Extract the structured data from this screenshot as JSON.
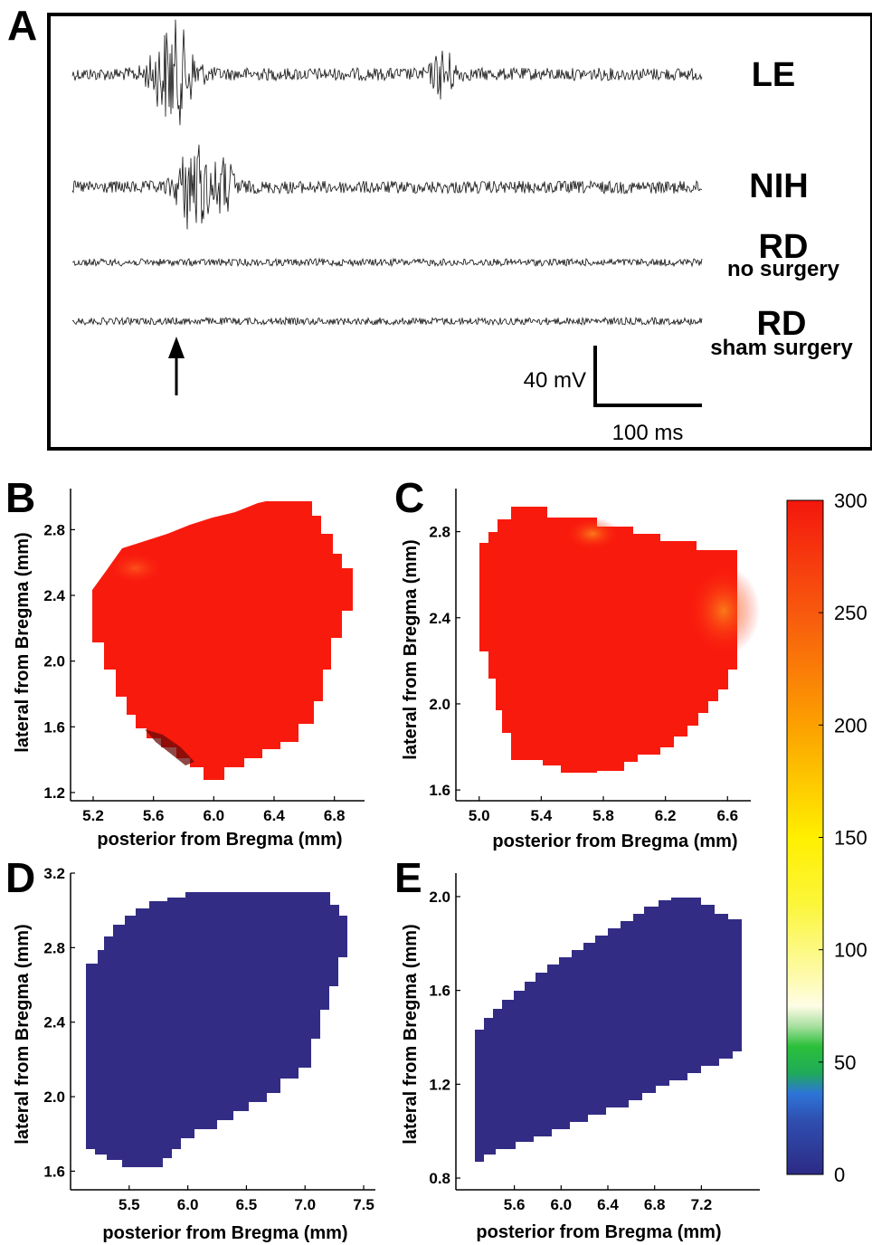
{
  "panel_a": {
    "letter": "A",
    "traces": [
      {
        "label": "LE",
        "sublabel": "",
        "burst": {
          "center_ms": 90,
          "amp": 1.0,
          "width_ms": 18
        },
        "burst2": {
          "center_ms": 330,
          "amp": 0.45,
          "width_ms": 10
        }
      },
      {
        "label": "NIH",
        "sublabel": "",
        "burst": {
          "center_ms": 108,
          "amp": 0.9,
          "width_ms": 14
        },
        "burst2": {
          "center_ms": 135,
          "amp": 0.5,
          "width_ms": 10
        }
      },
      {
        "label": "RD",
        "sublabel": "no surgery",
        "burst": null,
        "burst2": null
      },
      {
        "label": "RD",
        "sublabel": "sham surgery",
        "burst": null,
        "burst2": null
      }
    ],
    "scalebar": {
      "voltage_label": "40 mV",
      "time_label": "100 ms"
    },
    "stimulus_arrow": "up-arrow-icon"
  },
  "colorbar": {
    "ticks": [
      "300",
      "250",
      "200",
      "150",
      "100",
      "50",
      "0"
    ],
    "min": 0,
    "max": 300
  },
  "chart_data": [
    {
      "panel": "B",
      "type": "heatmap",
      "xlabel": "posterior from Bregma (mm)",
      "ylabel": "lateral from Bregma (mm)",
      "xticks": [
        "5.2",
        "5.6",
        "6.0",
        "6.4",
        "6.8"
      ],
      "yticks": [
        "2.8",
        "2.4",
        "2.0",
        "1.6",
        "1.2"
      ],
      "xlim": [
        5.05,
        7.0
      ],
      "ylim": [
        1.15,
        3.05
      ],
      "value": 300,
      "fill": "#f91a0e"
    },
    {
      "panel": "C",
      "type": "heatmap",
      "xlabel": "posterior from Bregma (mm)",
      "ylabel": "lateral from Bregma (mm)",
      "xticks": [
        "5.0",
        "5.4",
        "5.8",
        "6.2",
        "6.6"
      ],
      "yticks": [
        "2.8",
        "2.4",
        "2.0",
        "1.6"
      ],
      "xlim": [
        4.85,
        6.75
      ],
      "ylim": [
        1.55,
        3.0
      ],
      "value": 300,
      "fill": "#f91a0e"
    },
    {
      "panel": "D",
      "type": "heatmap",
      "xlabel": "posterior from Bregma (mm)",
      "ylabel": "lateral from Bregma (mm)",
      "xticks": [
        "5.5",
        "6.0",
        "6.5",
        "7.0",
        "7.5"
      ],
      "yticks": [
        "3.2",
        "2.8",
        "2.4",
        "2.0",
        "1.6"
      ],
      "xlim": [
        5.0,
        7.6
      ],
      "ylim": [
        1.5,
        3.2
      ],
      "value": 0,
      "fill": "#332c85"
    },
    {
      "panel": "E",
      "type": "heatmap",
      "xlabel": "posterior from Bregma (mm)",
      "ylabel": "lateral from Bregma (mm)",
      "xticks": [
        "5.6",
        "6.0",
        "6.4",
        "6.8",
        "7.2"
      ],
      "yticks": [
        "2.0",
        "1.6",
        "1.2",
        "0.8"
      ],
      "xlim": [
        5.1,
        7.7
      ],
      "ylim": [
        0.75,
        2.1
      ],
      "value": 0,
      "fill": "#332c85"
    }
  ]
}
